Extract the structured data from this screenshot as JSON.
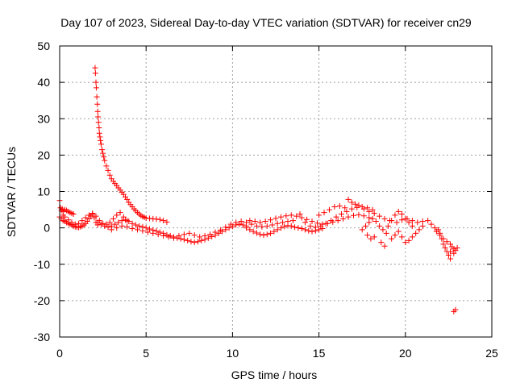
{
  "chart_data": {
    "type": "scatter",
    "title": "Day 107 of 2023, Sidereal Day-to-day VTEC variation (SDTVAR) for receiver cn29",
    "xlabel": "GPS time / hours",
    "ylabel": "SDTVAR / TECUs",
    "xlim": [
      0,
      25
    ],
    "ylim": [
      -30,
      50
    ],
    "xticks": [
      0,
      5,
      10,
      15,
      20,
      25
    ],
    "yticks": [
      -30,
      -20,
      -10,
      0,
      10,
      20,
      30,
      40,
      50
    ],
    "xtick_labels": [
      "0",
      "5",
      "10",
      "15",
      "20",
      "25"
    ],
    "ytick_labels": [
      "-30",
      "-20",
      "-10",
      "0",
      "10",
      "20",
      "30",
      "40",
      "50"
    ],
    "grid": true,
    "marker": "+",
    "color": "#ff0000",
    "series": [
      {
        "name": "SDTVAR",
        "points": [
          [
            0.0,
            7.5
          ],
          [
            0.05,
            5.5
          ],
          [
            0.1,
            4.8
          ],
          [
            0.15,
            5.2
          ],
          [
            0.2,
            4.5
          ],
          [
            0.3,
            5.0
          ],
          [
            0.4,
            4.8
          ],
          [
            0.5,
            4.5
          ],
          [
            0.6,
            4.2
          ],
          [
            0.7,
            4.0
          ],
          [
            0.8,
            3.8
          ],
          [
            0.0,
            3.0
          ],
          [
            0.1,
            2.5
          ],
          [
            0.2,
            2.0
          ],
          [
            0.3,
            1.8
          ],
          [
            0.4,
            1.5
          ],
          [
            0.5,
            1.2
          ],
          [
            0.6,
            1.0
          ],
          [
            0.7,
            0.8
          ],
          [
            0.8,
            0.5
          ],
          [
            0.9,
            0.3
          ],
          [
            1.0,
            0.2
          ],
          [
            1.1,
            0.1
          ],
          [
            1.2,
            0.3
          ],
          [
            1.3,
            0.5
          ],
          [
            1.4,
            0.8
          ],
          [
            1.5,
            1.2
          ],
          [
            1.6,
            1.8
          ],
          [
            1.7,
            2.5
          ],
          [
            1.8,
            3.2
          ],
          [
            1.9,
            3.8
          ],
          [
            2.0,
            2.8
          ],
          [
            2.1,
            1.5
          ],
          [
            2.2,
            0.8
          ],
          [
            0.2,
            3.5
          ],
          [
            0.3,
            3.0
          ],
          [
            0.5,
            2.2
          ],
          [
            0.7,
            1.5
          ],
          [
            0.9,
            1.0
          ],
          [
            1.1,
            1.2
          ],
          [
            1.3,
            2.0
          ],
          [
            1.5,
            2.8
          ],
          [
            1.7,
            3.5
          ],
          [
            1.9,
            4.0
          ],
          [
            2.1,
            3.2
          ],
          [
            2.3,
            2.0
          ],
          [
            2.5,
            1.2
          ],
          [
            2.7,
            1.0
          ],
          [
            2.9,
            1.5
          ],
          [
            3.1,
            2.5
          ],
          [
            3.3,
            3.5
          ],
          [
            3.5,
            4.2
          ],
          [
            3.7,
            3.0
          ],
          [
            3.9,
            2.0
          ],
          [
            2.05,
            44
          ],
          [
            2.07,
            42.5
          ],
          [
            2.1,
            40
          ],
          [
            2.12,
            38.5
          ],
          [
            2.15,
            36
          ],
          [
            2.18,
            34
          ],
          [
            2.2,
            32
          ],
          [
            2.22,
            30.5
          ],
          [
            2.25,
            29
          ],
          [
            2.28,
            27.5
          ],
          [
            2.3,
            26
          ],
          [
            2.33,
            25
          ],
          [
            2.36,
            24
          ],
          [
            2.4,
            23
          ],
          [
            2.45,
            21.5
          ],
          [
            2.5,
            20.5
          ],
          [
            2.55,
            19.5
          ],
          [
            2.6,
            18.5
          ],
          [
            2.7,
            17
          ],
          [
            2.8,
            15.8
          ],
          [
            2.9,
            14.5
          ],
          [
            3.0,
            13.5
          ],
          [
            3.1,
            12.8
          ],
          [
            3.2,
            12.2
          ],
          [
            3.3,
            11.6
          ],
          [
            3.4,
            11.0
          ],
          [
            3.5,
            10.4
          ],
          [
            3.6,
            9.8
          ],
          [
            3.7,
            9.2
          ],
          [
            3.8,
            8.5
          ],
          [
            3.9,
            7.8
          ],
          [
            4.0,
            7.0
          ],
          [
            4.1,
            6.4
          ],
          [
            4.2,
            5.8
          ],
          [
            4.3,
            5.2
          ],
          [
            4.4,
            4.7
          ],
          [
            4.5,
            4.2
          ],
          [
            4.6,
            3.8
          ],
          [
            4.7,
            3.4
          ],
          [
            4.8,
            3.1
          ],
          [
            4.9,
            2.9
          ],
          [
            5.0,
            2.7
          ],
          [
            5.2,
            2.6
          ],
          [
            5.4,
            2.5
          ],
          [
            5.6,
            2.4
          ],
          [
            5.8,
            2.3
          ],
          [
            6.0,
            2.0
          ],
          [
            6.2,
            1.6
          ],
          [
            2.2,
            1.5
          ],
          [
            2.4,
            1.0
          ],
          [
            2.6,
            0.5
          ],
          [
            2.8,
            0.2
          ],
          [
            3.0,
            0.5
          ],
          [
            3.2,
            1.0
          ],
          [
            3.4,
            1.5
          ],
          [
            3.6,
            2.0
          ],
          [
            3.8,
            2.2
          ],
          [
            4.0,
            1.8
          ],
          [
            4.2,
            1.2
          ],
          [
            4.4,
            0.8
          ],
          [
            4.6,
            0.5
          ],
          [
            4.8,
            0.3
          ],
          [
            5.0,
            0.0
          ],
          [
            5.2,
            -0.3
          ],
          [
            5.4,
            -0.6
          ],
          [
            5.6,
            -0.9
          ],
          [
            5.8,
            -1.2
          ],
          [
            6.0,
            -1.5
          ],
          [
            6.2,
            -1.9
          ],
          [
            6.4,
            -2.2
          ],
          [
            6.6,
            -2.5
          ],
          [
            6.8,
            -2.8
          ],
          [
            7.0,
            -3.0
          ],
          [
            7.2,
            -3.2
          ],
          [
            7.4,
            -3.5
          ],
          [
            7.6,
            -3.8
          ],
          [
            7.8,
            -4.0
          ],
          [
            8.0,
            -3.8
          ],
          [
            8.2,
            -3.5
          ],
          [
            8.4,
            -3.2
          ],
          [
            8.6,
            -2.8
          ],
          [
            8.8,
            -2.4
          ],
          [
            9.0,
            -2.0
          ],
          [
            9.2,
            -1.5
          ],
          [
            9.4,
            -1.0
          ],
          [
            9.6,
            -0.5
          ],
          [
            9.8,
            0.0
          ],
          [
            10.0,
            0.4
          ],
          [
            10.2,
            0.8
          ],
          [
            10.4,
            1.0
          ],
          [
            10.6,
            0.8
          ],
          [
            10.8,
            0.5
          ],
          [
            3.0,
            -0.5
          ],
          [
            3.3,
            0.0
          ],
          [
            3.6,
            0.5
          ],
          [
            3.9,
            0.3
          ],
          [
            4.2,
            -0.2
          ],
          [
            4.5,
            -0.5
          ],
          [
            4.8,
            -0.8
          ],
          [
            5.1,
            -1.2
          ],
          [
            5.4,
            -1.5
          ],
          [
            5.7,
            -1.8
          ],
          [
            6.0,
            -2.2
          ],
          [
            6.3,
            -2.5
          ],
          [
            6.6,
            -2.8
          ],
          [
            6.9,
            -2.2
          ],
          [
            7.2,
            -1.8
          ],
          [
            7.5,
            -1.5
          ],
          [
            7.8,
            -2.0
          ],
          [
            8.1,
            -2.5
          ],
          [
            8.4,
            -2.2
          ],
          [
            8.7,
            -1.8
          ],
          [
            9.0,
            -1.2
          ],
          [
            9.3,
            -0.6
          ],
          [
            9.6,
            0.2
          ],
          [
            9.9,
            1.0
          ],
          [
            10.2,
            1.5
          ],
          [
            10.5,
            1.8
          ],
          [
            10.8,
            1.5
          ],
          [
            11.1,
            1.0
          ],
          [
            11.4,
            0.5
          ],
          [
            11.7,
            0.3
          ],
          [
            12.0,
            0.5
          ],
          [
            12.3,
            0.8
          ],
          [
            12.6,
            1.2
          ],
          [
            12.9,
            1.5
          ],
          [
            13.2,
            1.8
          ],
          [
            13.5,
            2.0
          ],
          [
            10.8,
            0.0
          ],
          [
            11.0,
            -0.5
          ],
          [
            11.2,
            -1.0
          ],
          [
            11.4,
            -1.4
          ],
          [
            11.6,
            -1.8
          ],
          [
            11.8,
            -2.0
          ],
          [
            12.0,
            -1.8
          ],
          [
            12.2,
            -1.5
          ],
          [
            12.4,
            -1.0
          ],
          [
            12.6,
            -0.5
          ],
          [
            12.8,
            0.0
          ],
          [
            13.0,
            0.4
          ],
          [
            13.2,
            0.6
          ],
          [
            13.4,
            0.5
          ],
          [
            13.6,
            0.2
          ],
          [
            13.8,
            0.0
          ],
          [
            14.0,
            -0.2
          ],
          [
            14.2,
            -0.5
          ],
          [
            14.4,
            -0.8
          ],
          [
            14.6,
            -1.0
          ],
          [
            14.8,
            -0.8
          ],
          [
            15.0,
            -0.5
          ],
          [
            15.2,
            -0.2
          ],
          [
            11.0,
            2.0
          ],
          [
            11.3,
            1.8
          ],
          [
            11.6,
            1.5
          ],
          [
            11.9,
            1.8
          ],
          [
            12.2,
            2.2
          ],
          [
            12.5,
            2.6
          ],
          [
            12.8,
            3.0
          ],
          [
            13.1,
            3.3
          ],
          [
            13.4,
            3.5
          ],
          [
            13.7,
            3.2
          ],
          [
            14.0,
            2.8
          ],
          [
            14.3,
            2.3
          ],
          [
            14.6,
            1.8
          ],
          [
            14.9,
            1.3
          ],
          [
            15.2,
            1.0
          ],
          [
            15.5,
            1.2
          ],
          [
            15.8,
            1.6
          ],
          [
            16.1,
            2.0
          ],
          [
            16.4,
            2.5
          ],
          [
            16.7,
            3.0
          ],
          [
            17.0,
            3.4
          ],
          [
            17.3,
            3.6
          ],
          [
            17.6,
            3.3
          ],
          [
            17.9,
            2.8
          ],
          [
            13.9,
            3.8
          ],
          [
            14.2,
            1.5
          ],
          [
            14.5,
            0.5
          ],
          [
            14.8,
            0.2
          ],
          [
            15.1,
            0.5
          ],
          [
            15.4,
            1.2
          ],
          [
            15.7,
            2.0
          ],
          [
            16.0,
            3.0
          ],
          [
            16.3,
            3.8
          ],
          [
            16.6,
            4.5
          ],
          [
            16.9,
            5.2
          ],
          [
            17.2,
            5.6
          ],
          [
            17.5,
            5.8
          ],
          [
            17.8,
            5.5
          ],
          [
            18.1,
            5.0
          ],
          [
            15.0,
            3.5
          ],
          [
            15.3,
            4.2
          ],
          [
            15.6,
            5.0
          ],
          [
            15.9,
            5.8
          ],
          [
            16.2,
            6.0
          ],
          [
            16.5,
            5.5
          ],
          [
            16.7,
            7.8
          ],
          [
            16.9,
            7.0
          ],
          [
            17.1,
            6.5
          ],
          [
            17.3,
            6.2
          ],
          [
            17.6,
            5.2
          ],
          [
            17.9,
            4.5
          ],
          [
            18.2,
            4.0
          ],
          [
            18.5,
            3.2
          ],
          [
            18.8,
            2.5
          ],
          [
            19.1,
            2.0
          ],
          [
            17.5,
            -0.5
          ],
          [
            17.7,
            0.5
          ],
          [
            17.9,
            1.5
          ],
          [
            18.1,
            2.5
          ],
          [
            18.3,
            1.8
          ],
          [
            18.5,
            0.5
          ],
          [
            18.7,
            -0.5
          ],
          [
            18.9,
            -1.5
          ],
          [
            19.0,
            0.5
          ],
          [
            19.2,
            2.0
          ],
          [
            19.4,
            3.5
          ],
          [
            19.6,
            4.5
          ],
          [
            19.8,
            3.8
          ],
          [
            20.0,
            2.5
          ],
          [
            20.2,
            1.5
          ],
          [
            20.4,
            0.5
          ],
          [
            17.8,
            -2.0
          ],
          [
            18.0,
            -3.0
          ],
          [
            18.2,
            -2.5
          ],
          [
            18.6,
            -4.0
          ],
          [
            18.8,
            -5.0
          ],
          [
            19.2,
            -3.0
          ],
          [
            19.4,
            -2.0
          ],
          [
            19.6,
            -1.0
          ],
          [
            19.8,
            -2.5
          ],
          [
            20.0,
            -4.0
          ],
          [
            20.2,
            -3.5
          ],
          [
            20.4,
            -2.5
          ],
          [
            20.6,
            -1.5
          ],
          [
            20.8,
            -0.5
          ],
          [
            21.0,
            0.5
          ],
          [
            19.5,
            1.5
          ],
          [
            19.8,
            2.2
          ],
          [
            20.1,
            2.5
          ],
          [
            20.4,
            2.0
          ],
          [
            20.7,
            1.5
          ],
          [
            21.0,
            1.8
          ],
          [
            21.3,
            2.0
          ],
          [
            21.5,
            1.0
          ],
          [
            21.7,
            0.0
          ],
          [
            21.9,
            -0.5
          ],
          [
            22.0,
            -1.5
          ],
          [
            22.1,
            -3.0
          ],
          [
            22.2,
            -4.5
          ],
          [
            22.3,
            -5.5
          ],
          [
            22.4,
            -6.5
          ],
          [
            22.5,
            -7.5
          ],
          [
            22.6,
            -8.5
          ],
          [
            21.8,
            -1.0
          ],
          [
            22.0,
            -2.0
          ],
          [
            22.2,
            -3.0
          ],
          [
            22.4,
            -3.8
          ],
          [
            22.6,
            -4.5
          ],
          [
            22.7,
            -5.2
          ],
          [
            22.8,
            -5.8
          ],
          [
            22.9,
            -6.2
          ],
          [
            23.0,
            -5.5
          ],
          [
            22.8,
            -7.0
          ],
          [
            22.6,
            -6.5
          ],
          [
            22.9,
            -22.5
          ],
          [
            22.8,
            -23.0
          ]
        ]
      }
    ]
  }
}
